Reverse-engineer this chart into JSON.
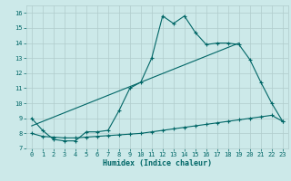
{
  "xlabel": "Humidex (Indice chaleur)",
  "xlim": [
    -0.5,
    23.5
  ],
  "ylim": [
    7.0,
    16.5
  ],
  "yticks": [
    7,
    8,
    9,
    10,
    11,
    12,
    13,
    14,
    15,
    16
  ],
  "xticks": [
    0,
    1,
    2,
    3,
    4,
    5,
    6,
    7,
    8,
    9,
    10,
    11,
    12,
    13,
    14,
    15,
    16,
    17,
    18,
    19,
    20,
    21,
    22,
    23
  ],
  "bg_color": "#cce9e9",
  "grid_color": "#b0cccc",
  "line_color": "#006666",
  "line1_x": [
    0,
    1,
    2,
    3,
    4,
    5,
    6,
    7,
    8,
    9,
    10,
    11,
    12,
    13,
    14,
    15,
    16,
    17,
    18,
    19,
    20,
    21,
    22,
    23
  ],
  "line1_y": [
    9.0,
    8.2,
    7.6,
    7.5,
    7.5,
    8.1,
    8.1,
    8.2,
    9.5,
    11.0,
    11.4,
    13.0,
    15.8,
    15.3,
    15.8,
    14.7,
    13.9,
    14.0,
    14.0,
    13.9,
    12.9,
    11.4,
    10.0,
    8.8
  ],
  "line2_x": [
    0,
    1,
    2,
    3,
    4,
    5,
    6,
    7,
    8,
    9,
    10,
    11,
    12,
    13,
    14,
    15,
    16,
    17,
    18,
    19,
    20,
    21,
    22,
    23
  ],
  "line2_y": [
    8.0,
    7.8,
    7.75,
    7.7,
    7.7,
    7.75,
    7.8,
    7.85,
    7.9,
    7.95,
    8.0,
    8.1,
    8.2,
    8.3,
    8.4,
    8.5,
    8.6,
    8.7,
    8.8,
    8.9,
    9.0,
    9.1,
    9.2,
    8.8
  ],
  "line3_x": [
    0,
    19
  ],
  "line3_y": [
    8.5,
    14.0
  ]
}
